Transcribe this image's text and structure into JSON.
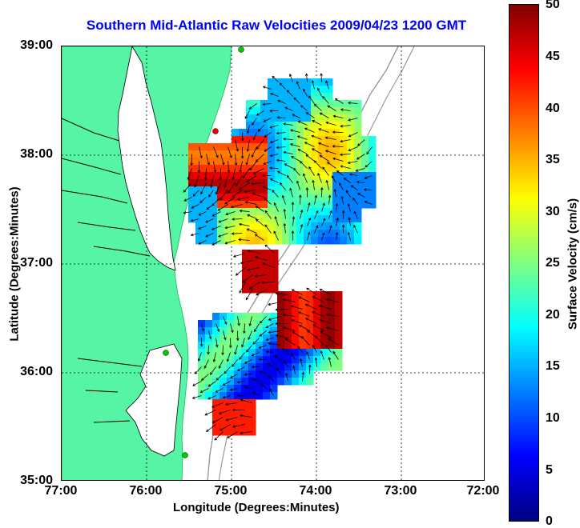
{
  "title": "Southern Mid-Atlantic Raw Velocities 2009/04/23 1200 GMT",
  "axes": {
    "xlabel": "Longitude (Degrees:Minutes)",
    "ylabel": "Latitude (Degrees:Minutes)",
    "xticks": [
      "77:00",
      "76:00",
      "75:00",
      "74:00",
      "73:00",
      "72:00"
    ],
    "yticks": [
      "39:00",
      "38:00",
      "37:00",
      "36:00",
      "35:00"
    ],
    "xlim": [
      -77,
      -72
    ],
    "ylim": [
      35,
      39
    ]
  },
  "colorbar": {
    "label": "Surface Velocity (cm/s)",
    "ticks": [
      "50",
      "45",
      "40",
      "35",
      "30",
      "25",
      "20",
      "15",
      "10",
      "5",
      "0"
    ],
    "range": [
      0,
      50
    ],
    "colormap": "jet"
  },
  "colors": {
    "land": "#55f5a5",
    "title": "#0000ff",
    "vectors": "#000000",
    "bathymetry": "#999999"
  }
}
